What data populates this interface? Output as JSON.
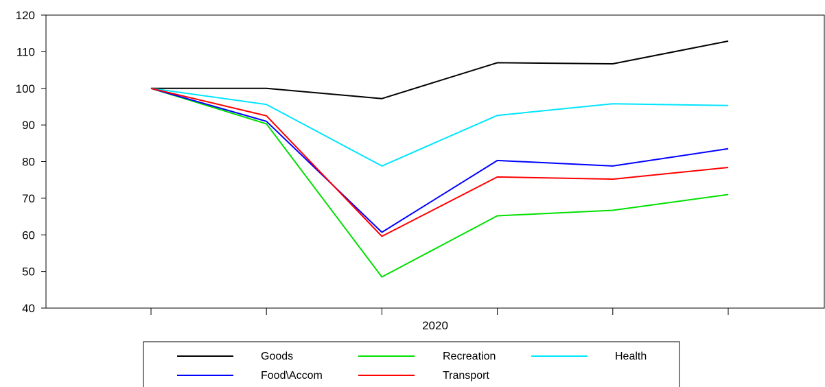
{
  "chart_data": {
    "type": "line",
    "title": "",
    "xlabel": "2020",
    "ylabel": "",
    "ylim": [
      40,
      120
    ],
    "yticks": [
      40,
      50,
      60,
      70,
      80,
      90,
      100,
      110,
      120
    ],
    "x": [
      1,
      2,
      3,
      4,
      5,
      6
    ],
    "grid": false,
    "legend_position": "bottom",
    "series": [
      {
        "name": "Goods",
        "color": "#000000",
        "values": [
          100,
          100,
          97.2,
          107,
          106.7,
          112.9
        ]
      },
      {
        "name": "Recreation",
        "color": "#00e000",
        "values": [
          100,
          90.3,
          48.5,
          65.2,
          66.7,
          71
        ]
      },
      {
        "name": "Health",
        "color": "#00e5ff",
        "values": [
          100,
          95.6,
          78.8,
          92.6,
          95.8,
          95.3
        ]
      },
      {
        "name": "Food\\Accom",
        "color": "#0000ff",
        "values": [
          100,
          91,
          60.7,
          80.3,
          78.8,
          83.5
        ]
      },
      {
        "name": "Transport",
        "color": "#ff0000",
        "values": [
          100,
          92.5,
          59.6,
          75.8,
          75.2,
          78.4
        ]
      }
    ]
  }
}
